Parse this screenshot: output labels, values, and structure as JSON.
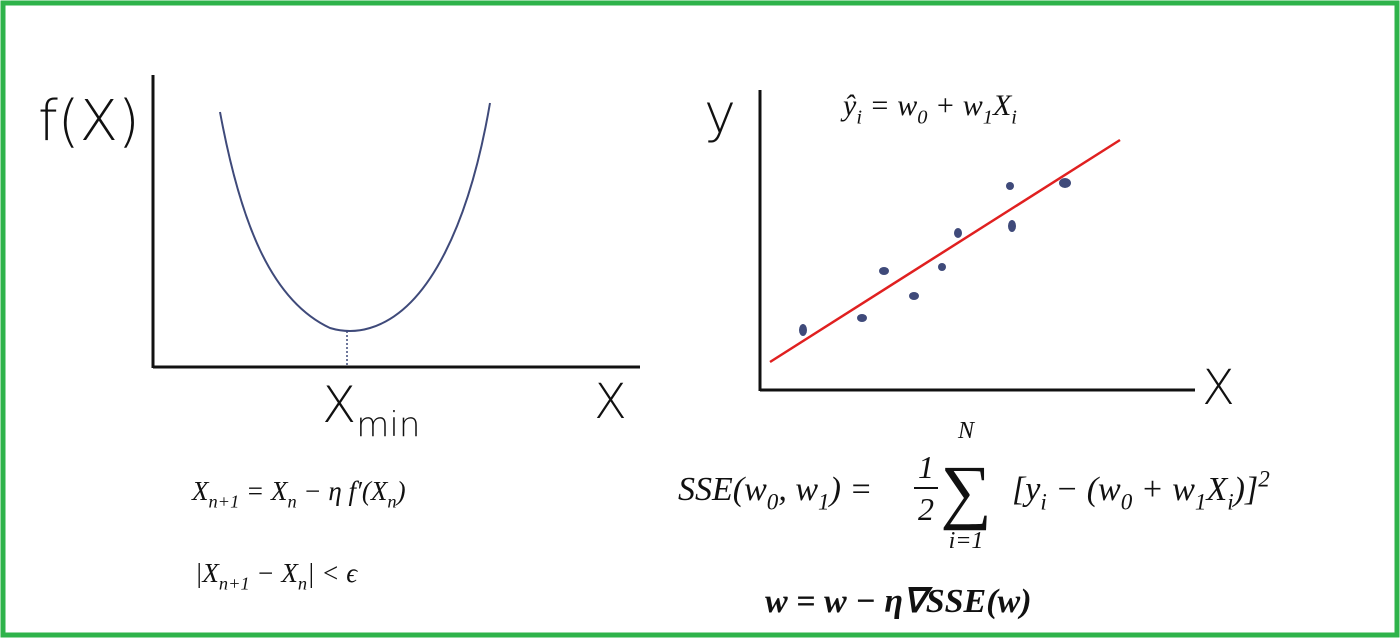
{
  "left_panel": {
    "y_axis_label": "f(X)",
    "x_axis_label": "X",
    "min_label": [
      {
        "text": "X"
      },
      {
        "sub": "min"
      }
    ],
    "update_rule": [
      {
        "text": "X"
      },
      {
        "sub": "n+1"
      },
      {
        "text": "  = X"
      },
      {
        "sub": "n"
      },
      {
        "text": " − η f′(X"
      },
      {
        "sub": "n"
      },
      {
        "text": ")"
      }
    ],
    "stop_rule": [
      {
        "text": "|X"
      },
      {
        "sub": "n+1"
      },
      {
        "text": " − X"
      },
      {
        "sub": "n"
      },
      {
        "text": "| < ϵ"
      }
    ]
  },
  "right_panel": {
    "y_axis_label": "y",
    "x_axis_label": "X",
    "model": [
      {
        "text": "ŷ"
      },
      {
        "sub": "i"
      },
      {
        "text": " = w"
      },
      {
        "sub": "0"
      },
      {
        "text": " + w"
      },
      {
        "sub": "1"
      },
      {
        "text": "X"
      },
      {
        "sub": "i"
      }
    ],
    "sse": {
      "lhs": [
        {
          "text": "SSE(w"
        },
        {
          "sub": "0"
        },
        {
          "text": ", w"
        },
        {
          "sub": "1"
        },
        {
          "text": ") ="
        }
      ],
      "fraction": {
        "numerator": "1",
        "denominator": "2"
      },
      "sum": {
        "symbol": "∑",
        "upper": "N",
        "lower": "i=1"
      },
      "rhs": [
        {
          "text": "[y"
        },
        {
          "sub": "i"
        },
        {
          "text": " − (w"
        },
        {
          "sub": "0"
        },
        {
          "text": " + w"
        },
        {
          "sub": "1"
        },
        {
          "text": "X"
        },
        {
          "sub": "i"
        },
        {
          "text": ")]"
        },
        {
          "sup": "2"
        }
      ]
    },
    "gradient_rule": "w = w − η∇SSE(w)"
  }
}
